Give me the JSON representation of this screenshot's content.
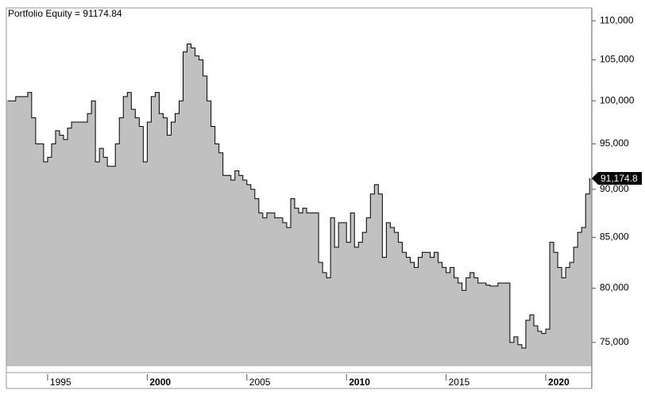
{
  "chart_data": {
    "type": "step-area",
    "title": "Portfolio Equity = 91174.84",
    "x": [
      1993,
      1993.2,
      1993.4,
      1993.6,
      1993.8,
      1994,
      1994.2,
      1994.4,
      1994.6,
      1994.8,
      1995,
      1995.2,
      1995.4,
      1995.6,
      1995.8,
      1996,
      1996.2,
      1996.4,
      1996.6,
      1996.8,
      1997,
      1997.2,
      1997.4,
      1997.6,
      1997.8,
      1998,
      1998.2,
      1998.4,
      1998.6,
      1998.8,
      1999,
      1999.2,
      1999.4,
      1999.6,
      1999.8,
      2000,
      2000.2,
      2000.4,
      2000.6,
      2000.8,
      2001,
      2001.2,
      2001.4,
      2001.6,
      2001.8,
      2002,
      2002.2,
      2002.4,
      2002.6,
      2002.8,
      2003,
      2003.2,
      2003.4,
      2003.6,
      2003.8,
      2004,
      2004.2,
      2004.4,
      2004.6,
      2004.8,
      2005,
      2005.2,
      2005.4,
      2005.6,
      2005.8,
      2006,
      2006.2,
      2006.4,
      2006.6,
      2006.8,
      2007,
      2007.2,
      2007.4,
      2007.6,
      2007.8,
      2008,
      2008.2,
      2008.4,
      2008.6,
      2008.8,
      2009,
      2009.2,
      2009.4,
      2009.6,
      2009.8,
      2010,
      2010.2,
      2010.4,
      2010.6,
      2010.8,
      2011,
      2011.2,
      2011.4,
      2011.6,
      2011.8,
      2012,
      2012.2,
      2012.4,
      2012.6,
      2012.8,
      2013,
      2013.2,
      2013.4,
      2013.6,
      2013.8,
      2014,
      2014.2,
      2014.4,
      2014.6,
      2014.8,
      2015,
      2015.2,
      2015.4,
      2015.6,
      2015.8,
      2016,
      2016.2,
      2016.4,
      2016.6,
      2016.8,
      2017,
      2017.2,
      2017.4,
      2017.6,
      2017.8,
      2018,
      2018.2,
      2018.4,
      2018.6,
      2018.8,
      2019,
      2019.2,
      2019.4,
      2019.6,
      2019.8,
      2020,
      2020.2,
      2020.4,
      2020.6,
      2020.8,
      2021,
      2021.2,
      2021.4,
      2021.6,
      2021.8,
      2022,
      2022.2
    ],
    "values": [
      100000,
      100000,
      100500,
      100500,
      100500,
      101000,
      98000,
      95000,
      95000,
      93000,
      93500,
      95000,
      96500,
      96000,
      95500,
      96800,
      97500,
      97500,
      97500,
      97500,
      98500,
      100000,
      93000,
      94500,
      93500,
      92500,
      92500,
      95000,
      98000,
      100500,
      101000,
      99000,
      98000,
      97000,
      93000,
      97500,
      100500,
      101000,
      98500,
      98000,
      96000,
      97500,
      98500,
      100000,
      106000,
      107000,
      106500,
      105500,
      105000,
      103000,
      100000,
      97000,
      95000,
      94000,
      91500,
      91500,
      91000,
      92000,
      91500,
      91000,
      90500,
      90000,
      89000,
      87500,
      87000,
      87500,
      87500,
      87000,
      87000,
      86500,
      86000,
      89000,
      88000,
      87500,
      88000,
      87500,
      87500,
      87500,
      82500,
      81500,
      81000,
      87000,
      84000,
      86500,
      86500,
      84500,
      87500,
      84000,
      84500,
      85500,
      87000,
      89500,
      90500,
      89500,
      83000,
      86500,
      86000,
      85500,
      84500,
      83500,
      83000,
      82500,
      82000,
      83000,
      83500,
      83500,
      83000,
      83500,
      82500,
      82000,
      81500,
      82000,
      81000,
      80500,
      79800,
      81000,
      81500,
      81000,
      80500,
      80500,
      80300,
      80200,
      80200,
      80500,
      80500,
      80500,
      75000,
      75500,
      74800,
      74500,
      77000,
      77500,
      76500,
      76000,
      75800,
      76200,
      84500,
      83500,
      82000,
      81000,
      82000,
      82500,
      84000,
      85500,
      86000,
      89500,
      91174.84
    ],
    "last_value_label": "91,174.8",
    "fill_color": "#c0c0c0",
    "line_color": "#000000",
    "log_y": true,
    "xlim": [
      1992.93,
      2022.31
    ],
    "xticks": [
      1995,
      2000,
      2005,
      2010,
      2015,
      2020
    ],
    "ylim": [
      72900,
      111700
    ],
    "yticks": [
      {
        "value": 75000,
        "label": "75,000"
      },
      {
        "value": 80000,
        "label": "80,000"
      },
      {
        "value": 85000,
        "label": "85,000"
      },
      {
        "value": 90000,
        "label": "90,000"
      },
      {
        "value": 95000,
        "label": "95,000"
      },
      {
        "value": 100000,
        "label": "100,000"
      },
      {
        "value": 105000,
        "label": "105,000"
      },
      {
        "value": 110000,
        "label": "110,000"
      }
    ]
  }
}
